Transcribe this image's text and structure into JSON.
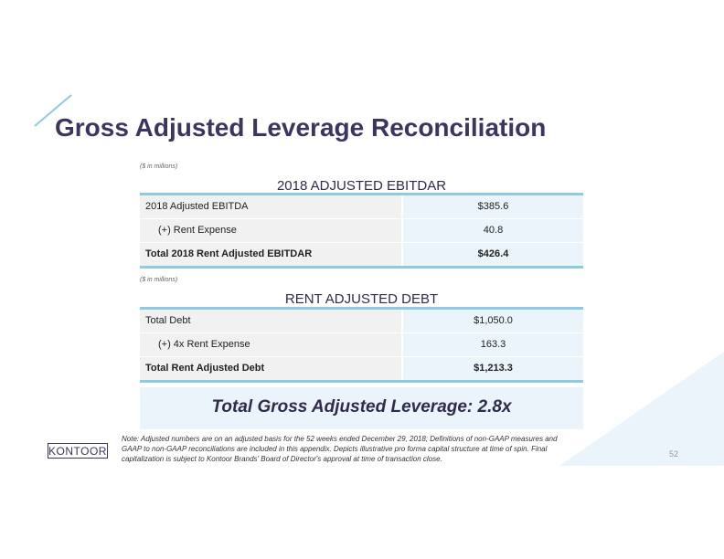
{
  "title": "Gross Adjusted Leverage Reconciliation",
  "unit_note": "($ in millions)",
  "ebitdar": {
    "header": "2018 ADJUSTED EBITDAR",
    "rows": [
      {
        "label": "2018 Adjusted EBITDA",
        "value": "$385.6"
      },
      {
        "label": "(+) Rent Expense",
        "value": "40.8"
      },
      {
        "label": "Total 2018 Rent Adjusted EBITDAR",
        "value": "$426.4"
      }
    ]
  },
  "debt": {
    "header": "RENT ADJUSTED DEBT",
    "rows": [
      {
        "label": "Total Debt",
        "value": "$1,050.0"
      },
      {
        "label": "(+) 4x Rent Expense",
        "value": "163.3"
      },
      {
        "label": "Total Rent Adjusted Debt",
        "value": "$1,213.3"
      }
    ]
  },
  "total": "Total Gross Adjusted Leverage: 2.8x",
  "note": "Note: Adjusted numbers are on an adjusted basis for the 52 weeks ended December 29, 2018; Definitions of non-GAAP measures and GAAP to non-GAAP reconciliations are included in this appendix. Depicts illustrative pro forma capital structure at time of spin. Final capitalization is subject to Kontoor Brands' Board of Director's approval at time of transaction close.",
  "logo": "KONTOOR",
  "page_number": "52"
}
